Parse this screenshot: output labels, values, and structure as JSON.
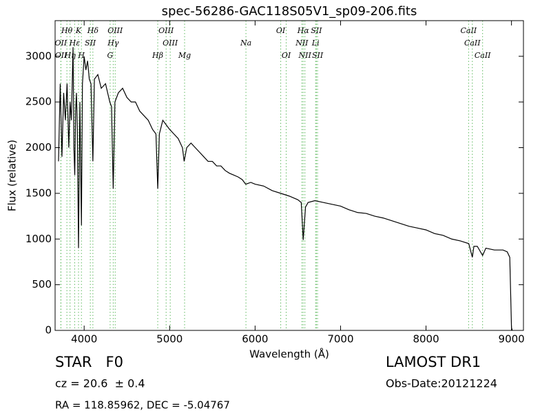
{
  "chart_data": {
    "type": "line",
    "title": "spec-56286-GAC118S05V1_sp09-206.fits",
    "x_label": "Wavelength (Å)",
    "y_label": "Flux (relative)",
    "xlim": [
      3660,
      9140
    ],
    "ylim": [
      0,
      3390
    ],
    "xticks": [
      4000,
      5000,
      6000,
      7000,
      8000,
      9000
    ],
    "yticks": [
      0,
      500,
      1000,
      1500,
      2000,
      2500,
      3000
    ],
    "color": "#000000",
    "line_color": "#5cb85c",
    "x": [
      3700,
      3720,
      3740,
      3760,
      3780,
      3800,
      3820,
      3835,
      3850,
      3870,
      3880,
      3890,
      3900,
      3910,
      3920,
      3934,
      3950,
      3968,
      3980,
      4000,
      4020,
      4040,
      4060,
      4080,
      4102,
      4120,
      4160,
      4200,
      4250,
      4300,
      4320,
      4340,
      4360,
      4400,
      4450,
      4500,
      4550,
      4600,
      4650,
      4700,
      4750,
      4800,
      4840,
      4861,
      4880,
      4920,
      4960,
      5000,
      5050,
      5100,
      5150,
      5170,
      5200,
      5250,
      5300,
      5350,
      5400,
      5450,
      5500,
      5550,
      5600,
      5650,
      5700,
      5750,
      5800,
      5850,
      5890,
      5950,
      6000,
      6100,
      6200,
      6300,
      6400,
      6500,
      6540,
      6563,
      6590,
      6620,
      6700,
      6800,
      6900,
      7000,
      7100,
      7200,
      7300,
      7400,
      7500,
      7600,
      7700,
      7800,
      7900,
      8000,
      8100,
      8200,
      8300,
      8400,
      8500,
      8542,
      8560,
      8600,
      8662,
      8700,
      8800,
      8900,
      8950,
      8980,
      9000,
      9010
    ],
    "values": [
      1850,
      2700,
      1900,
      2600,
      2300,
      2700,
      2000,
      2500,
      2300,
      3100,
      2000,
      1700,
      2400,
      2600,
      2200,
      900,
      2500,
      1150,
      2700,
      3000,
      2850,
      2950,
      2750,
      2700,
      1850,
      2750,
      2800,
      2650,
      2700,
      2500,
      2450,
      1550,
      2500,
      2600,
      2650,
      2550,
      2500,
      2500,
      2400,
      2350,
      2300,
      2200,
      2150,
      1550,
      2150,
      2300,
      2250,
      2200,
      2150,
      2100,
      2000,
      1850,
      2000,
      2050,
      2000,
      1950,
      1900,
      1850,
      1850,
      1800,
      1800,
      1750,
      1720,
      1700,
      1680,
      1650,
      1600,
      1620,
      1600,
      1580,
      1530,
      1500,
      1470,
      1430,
      1400,
      990,
      1350,
      1400,
      1420,
      1400,
      1380,
      1360,
      1320,
      1290,
      1280,
      1250,
      1230,
      1200,
      1170,
      1140,
      1120,
      1100,
      1060,
      1040,
      1000,
      980,
      950,
      800,
      920,
      920,
      820,
      900,
      880,
      880,
      860,
      800,
      30,
      0
    ],
    "line_labels": [
      [
        {
          "label": "Hθ",
          "x": 3798
        },
        {
          "label": "K",
          "x": 3934
        },
        {
          "label": "Hδ",
          "x": 4102
        },
        {
          "label": "OIII",
          "x": 4363
        },
        {
          "label": "OIII",
          "x": 4959
        },
        {
          "label": "OI",
          "x": 6300
        },
        {
          "label": "Hα",
          "x": 6563
        },
        {
          "label": "SII",
          "x": 6717
        },
        {
          "label": "CaII",
          "x": 8498
        }
      ],
      [
        {
          "label": "OII",
          "x": 3727
        },
        {
          "label": "Hε",
          "x": 3889
        },
        {
          "label": "SII",
          "x": 4072
        },
        {
          "label": "Hγ",
          "x": 4340
        },
        {
          "label": "OIII",
          "x": 5007
        },
        {
          "label": "Na",
          "x": 5893
        },
        {
          "label": "NII",
          "x": 6548
        },
        {
          "label": "Li",
          "x": 6708
        },
        {
          "label": "CaII",
          "x": 8542
        }
      ],
      [
        {
          "label": "OII",
          "x": 3729
        },
        {
          "label": "Hη",
          "x": 3835
        },
        {
          "label": "H",
          "x": 3968
        },
        {
          "label": "G",
          "x": 4304
        },
        {
          "label": "Hβ",
          "x": 4861
        },
        {
          "label": "Mg",
          "x": 5175
        },
        {
          "label": "OI",
          "x": 6364
        },
        {
          "label": "NII",
          "x": 6583
        },
        {
          "label": "SII",
          "x": 6731
        },
        {
          "label": "CaII",
          "x": 8662
        }
      ]
    ]
  },
  "info": {
    "object": "STAR   F0",
    "survey": "LAMOST DR1",
    "redshift": "cz = 20.6  ± 0.4",
    "obs_date": "Obs-Date:20121224",
    "coords": "RA = 118.85962, DEC = -5.04767"
  }
}
